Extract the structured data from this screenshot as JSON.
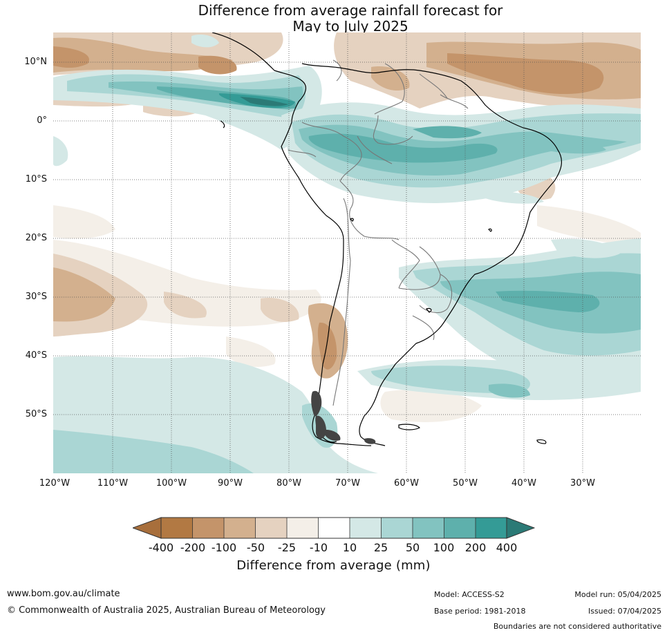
{
  "title": {
    "line1": "Difference from average rainfall forecast for",
    "line2": "May to July 2025"
  },
  "map": {
    "latitude_labels": [
      "10°N",
      "0°",
      "10°S",
      "20°S",
      "30°S",
      "40°S",
      "50°S"
    ],
    "longitude_labels": [
      "120°W",
      "110°W",
      "100°W",
      "90°W",
      "80°W",
      "70°W",
      "60°W",
      "50°W",
      "40°W",
      "30°W"
    ]
  },
  "colorbar": {
    "title": "Difference from average (mm)",
    "ticks": [
      "-400",
      "-200",
      "-100",
      "-50",
      "-25",
      "-10",
      "10",
      "25",
      "50",
      "100",
      "200",
      "400"
    ],
    "colors": [
      "#a86f3c",
      "#b27943",
      "#c4946a",
      "#d3b08e",
      "#e5d2c0",
      "#f4efe8",
      "#ffffff",
      "#d4e8e6",
      "#aad6d4",
      "#82c3c0",
      "#5eb0ac",
      "#349b96",
      "#2b7a76"
    ]
  },
  "footer": {
    "url": "www.bom.gov.au/climate",
    "copyright": "© Commonwealth of Australia 2025, Australian Bureau of Meteorology",
    "model": "Model: ACCESS-S2",
    "base_period": "Base period: 1981-2018",
    "model_run": "Model run: 05/04/2025",
    "issued": "Issued: 07/04/2025",
    "disclaimer": "Boundaries are not considered authoritative"
  }
}
